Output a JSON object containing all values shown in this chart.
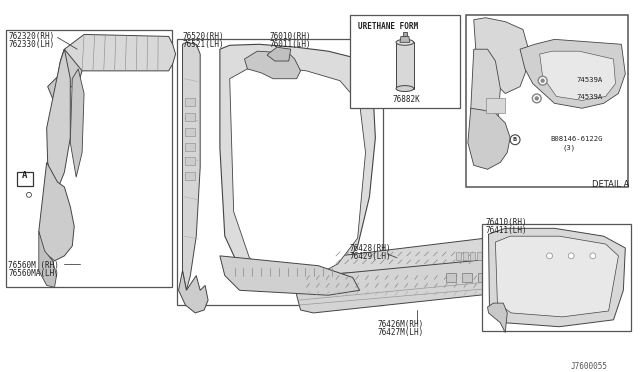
{
  "bg_color": "#ffffff",
  "lc": "#444444",
  "part_numbers": {
    "top_left": [
      "762320(RH)",
      "762330(LH)"
    ],
    "center_top_left": [
      "76520(RH)",
      "76521(LH)"
    ],
    "center_top": [
      "76010(RH)",
      "76011(LH)"
    ],
    "left_mid": [
      "76560M (RH)",
      "76560MA(LH)"
    ],
    "center_right_mid": [
      "76428(RH)",
      "76429(LH)"
    ],
    "bottom_center": [
      "76426M(RH)",
      "76427M(LH)"
    ],
    "urethane_label": "URETHANE FORM",
    "urethane_num": "76882K",
    "bottom_right_label": [
      "76410(RH)",
      "76411(LH)"
    ],
    "detail_a_label": "DETAIL A",
    "detail_74539_1": "74539A",
    "detail_74539_2": "74539A",
    "detail_bolt": "B08146-6122G",
    "detail_bolt_qty": "(3)"
  },
  "marker_A": "A",
  "footer": "J7600055"
}
